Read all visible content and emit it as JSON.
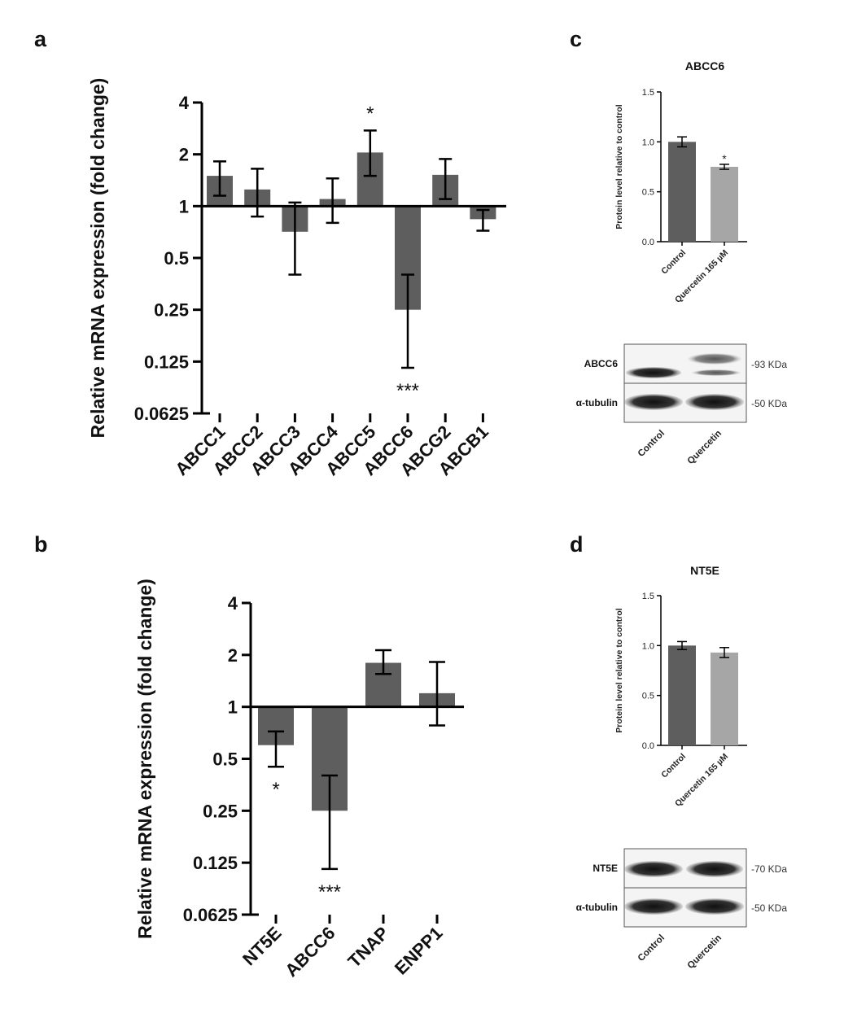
{
  "colors": {
    "bar_dark": "#5e5e5e",
    "bar_light": "#a6a6a6",
    "axis": "#000000"
  },
  "panels": {
    "a": {
      "letter": "a"
    },
    "b": {
      "letter": "b"
    },
    "c": {
      "letter": "c"
    },
    "d": {
      "letter": "d"
    }
  },
  "chart_data": [
    {
      "id": "a",
      "type": "bar",
      "yscale": "log2",
      "baseline": 1,
      "ylabel": "Relative mRNA expression (fold change)",
      "yticks": [
        "4",
        "2",
        "1",
        "0.5",
        "0.25",
        "0.125",
        "0.0625"
      ],
      "ytick_values": [
        4,
        2,
        1,
        0.5,
        0.25,
        0.125,
        0.0625
      ],
      "ylim": [
        0.0625,
        4
      ],
      "categories": [
        "ABCC1",
        "ABCC2",
        "ABCC3",
        "ABCC4",
        "ABCC5",
        "ABCC6",
        "ABCG2",
        "ABCB1"
      ],
      "values": [
        1.5,
        1.25,
        0.71,
        1.1,
        2.05,
        0.25,
        1.52,
        0.84
      ],
      "error_low": [
        1.15,
        0.87,
        0.4,
        0.8,
        1.5,
        0.115,
        1.1,
        0.72
      ],
      "error_high": [
        1.82,
        1.65,
        1.05,
        1.45,
        2.75,
        0.4,
        1.88,
        0.95
      ],
      "significance": [
        "",
        "",
        "",
        "",
        "*",
        "***",
        "",
        ""
      ]
    },
    {
      "id": "b",
      "type": "bar",
      "yscale": "log2",
      "baseline": 1,
      "ylabel": "Relative mRNA expression (fold change)",
      "yticks": [
        "4",
        "2",
        "1",
        "0.5",
        "0.25",
        "0.125",
        "0.0625"
      ],
      "ytick_values": [
        4,
        2,
        1,
        0.5,
        0.25,
        0.125,
        0.0625
      ],
      "ylim": [
        0.0625,
        4
      ],
      "categories": [
        "NT5E",
        "ABCC6",
        "TNAP",
        "ENPP1"
      ],
      "values": [
        0.6,
        0.25,
        1.8,
        1.2
      ],
      "error_low": [
        0.45,
        0.115,
        1.55,
        0.78
      ],
      "error_high": [
        0.72,
        0.4,
        2.13,
        1.82
      ],
      "significance": [
        "*",
        "***",
        "",
        ""
      ]
    },
    {
      "id": "c",
      "type": "bar",
      "title": "ABCC6",
      "ylabel": "Protein level relative to control",
      "yticks": [
        "1.5",
        "1.0",
        "0.5",
        "0.0"
      ],
      "ytick_values": [
        1.5,
        1.0,
        0.5,
        0.0
      ],
      "ylim": [
        0,
        1.5
      ],
      "categories": [
        "Control",
        "Quercetin 165 µM"
      ],
      "values": [
        1.0,
        0.75
      ],
      "error": [
        0.05,
        0.025
      ],
      "significance": [
        "",
        "*"
      ]
    },
    {
      "id": "d",
      "type": "bar",
      "title": "NT5E",
      "ylabel": "Protein level relative to control",
      "yticks": [
        "1.5",
        "1.0",
        "0.5",
        "0.0"
      ],
      "ytick_values": [
        1.5,
        1.0,
        0.5,
        0.0
      ],
      "ylim": [
        0,
        1.5
      ],
      "categories": [
        "Control",
        "Quercetin 165 µM"
      ],
      "values": [
        1.0,
        0.93
      ],
      "error": [
        0.04,
        0.05
      ],
      "significance": [
        "",
        ""
      ]
    }
  ],
  "blots": [
    {
      "id": "c",
      "rows": [
        {
          "label": "ABCC6",
          "size": "-93 KDa"
        },
        {
          "label": "α-tubulin",
          "size": "-50 KDa"
        }
      ],
      "lanes": [
        "Control",
        "Quercetin"
      ]
    },
    {
      "id": "d",
      "rows": [
        {
          "label": "NT5E",
          "size": "-70 KDa"
        },
        {
          "label": "α-tubulin",
          "size": "-50 KDa"
        }
      ],
      "lanes": [
        "Control",
        "Quercetin"
      ]
    }
  ]
}
